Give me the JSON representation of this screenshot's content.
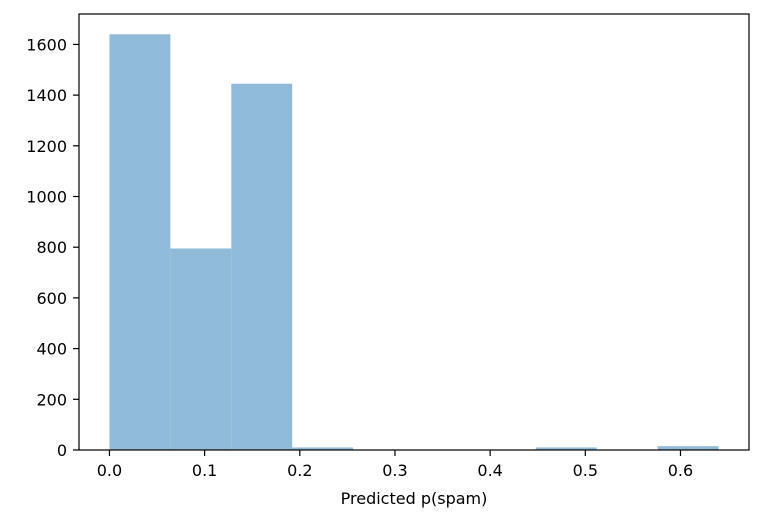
{
  "chart_data": {
    "type": "bar",
    "title": "",
    "xlabel": "Predicted p(spam)",
    "ylabel": "",
    "bins": [
      {
        "x0": 0.0,
        "x1": 0.064,
        "count": 1640
      },
      {
        "x0": 0.064,
        "x1": 0.128,
        "count": 795
      },
      {
        "x0": 0.128,
        "x1": 0.192,
        "count": 1445
      },
      {
        "x0": 0.192,
        "x1": 0.256,
        "count": 10
      },
      {
        "x0": 0.256,
        "x1": 0.32,
        "count": 0
      },
      {
        "x0": 0.32,
        "x1": 0.384,
        "count": 0
      },
      {
        "x0": 0.384,
        "x1": 0.448,
        "count": 0
      },
      {
        "x0": 0.448,
        "x1": 0.512,
        "count": 10
      },
      {
        "x0": 0.512,
        "x1": 0.576,
        "count": 0
      },
      {
        "x0": 0.576,
        "x1": 0.64,
        "count": 15
      }
    ],
    "xlim": [
      -0.032,
      0.672
    ],
    "ylim": [
      0,
      1720
    ],
    "xticks": [
      "0.0",
      "0.1",
      "0.2",
      "0.3",
      "0.4",
      "0.5",
      "0.6"
    ],
    "yticks": [
      "0",
      "200",
      "400",
      "600",
      "800",
      "1000",
      "1200",
      "1400",
      "1600"
    ],
    "bar_color": "#8fbad8",
    "grid": false,
    "legend": "none"
  }
}
